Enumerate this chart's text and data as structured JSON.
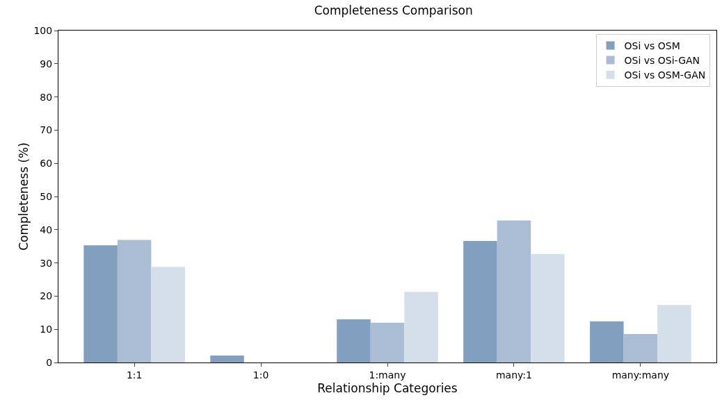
{
  "chart_data": {
    "type": "bar",
    "title": "Completeness Comparison",
    "xlabel": "Relationship Categories",
    "ylabel": "Completeness (%)",
    "categories": [
      "1:1",
      "1:0",
      "1:many",
      "many:1",
      "many:many"
    ],
    "series": [
      {
        "name": "OSi vs OSM",
        "color": "#819fbf",
        "values": [
          35.3,
          2.1,
          13.0,
          36.6,
          12.4
        ]
      },
      {
        "name": "OSi vs OSi-GAN",
        "color": "#aabdd5",
        "values": [
          36.9,
          0,
          12.0,
          42.8,
          8.6
        ]
      },
      {
        "name": "OSi vs OSM-GAN",
        "color": "#d5dfea",
        "values": [
          28.8,
          0,
          21.3,
          32.7,
          17.3
        ]
      }
    ],
    "ylim": [
      0,
      100
    ],
    "yticks": [
      0,
      10,
      20,
      30,
      40,
      50,
      60,
      70,
      80,
      90,
      100
    ],
    "grid": false,
    "legend": "top right"
  }
}
